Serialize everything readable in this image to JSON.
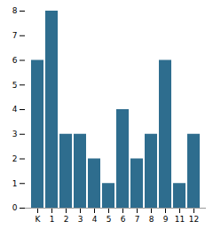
{
  "chart_data": {
    "type": "bar",
    "categories": [
      "K",
      "1",
      "2",
      "3",
      "4",
      "5",
      "6",
      "7",
      "8",
      "9",
      "11",
      "12"
    ],
    "values": [
      6,
      8,
      3,
      3,
      2,
      1,
      4,
      2,
      3,
      6,
      1,
      3
    ],
    "color": "#2e6d8e",
    "ylim": [
      0,
      8
    ],
    "yticks": [
      0,
      1,
      2,
      3,
      4,
      5,
      6,
      7,
      8
    ],
    "grid": false
  }
}
